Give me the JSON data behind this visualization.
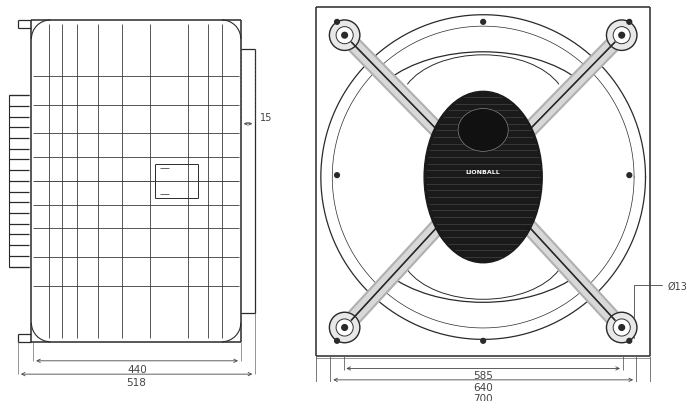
{
  "bg_color": "#ffffff",
  "line_color": "#2a2a2a",
  "dim_color": "#444444",
  "fig_width": 6.89,
  "fig_height": 4.02,
  "dpi": 100,
  "dims_left": {
    "val_15": "15",
    "val_440": "440",
    "val_518": "518"
  },
  "dims_right": {
    "val_585": "585",
    "val_640": "640",
    "val_700": "700",
    "val_d13": "Ø13"
  }
}
